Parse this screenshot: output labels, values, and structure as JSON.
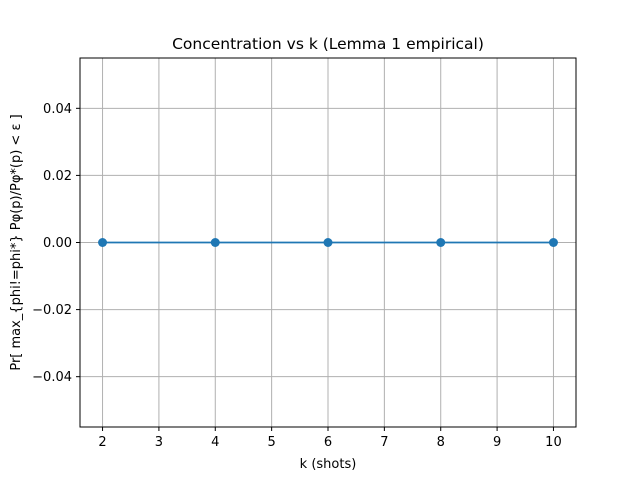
{
  "chart_data": {
    "type": "line",
    "title": "Concentration vs k (Lemma 1 empirical)",
    "xlabel": "k (shots)",
    "ylabel": "Pr[ max_{phi!=phi*} Pφ(p)/Pφ*(p) < ε ]",
    "x": [
      2,
      4,
      6,
      8,
      10
    ],
    "series": [
      {
        "values": [
          0.0,
          0.0,
          0.0,
          0.0,
          0.0
        ],
        "color": "#1f77b4",
        "marker": "circle"
      }
    ],
    "xlim": [
      1.6,
      10.4
    ],
    "ylim": [
      -0.055,
      0.055
    ],
    "xticks": [
      2,
      3,
      4,
      5,
      6,
      7,
      8,
      9,
      10
    ],
    "xtick_labels": [
      "2",
      "3",
      "4",
      "5",
      "6",
      "7",
      "8",
      "9",
      "10"
    ],
    "yticks": [
      -0.04,
      -0.02,
      0.0,
      0.02,
      0.04
    ],
    "ytick_labels": [
      "−0.04",
      "−0.02",
      "0.00",
      "0.02",
      "0.04"
    ],
    "grid": true,
    "legend": false
  }
}
